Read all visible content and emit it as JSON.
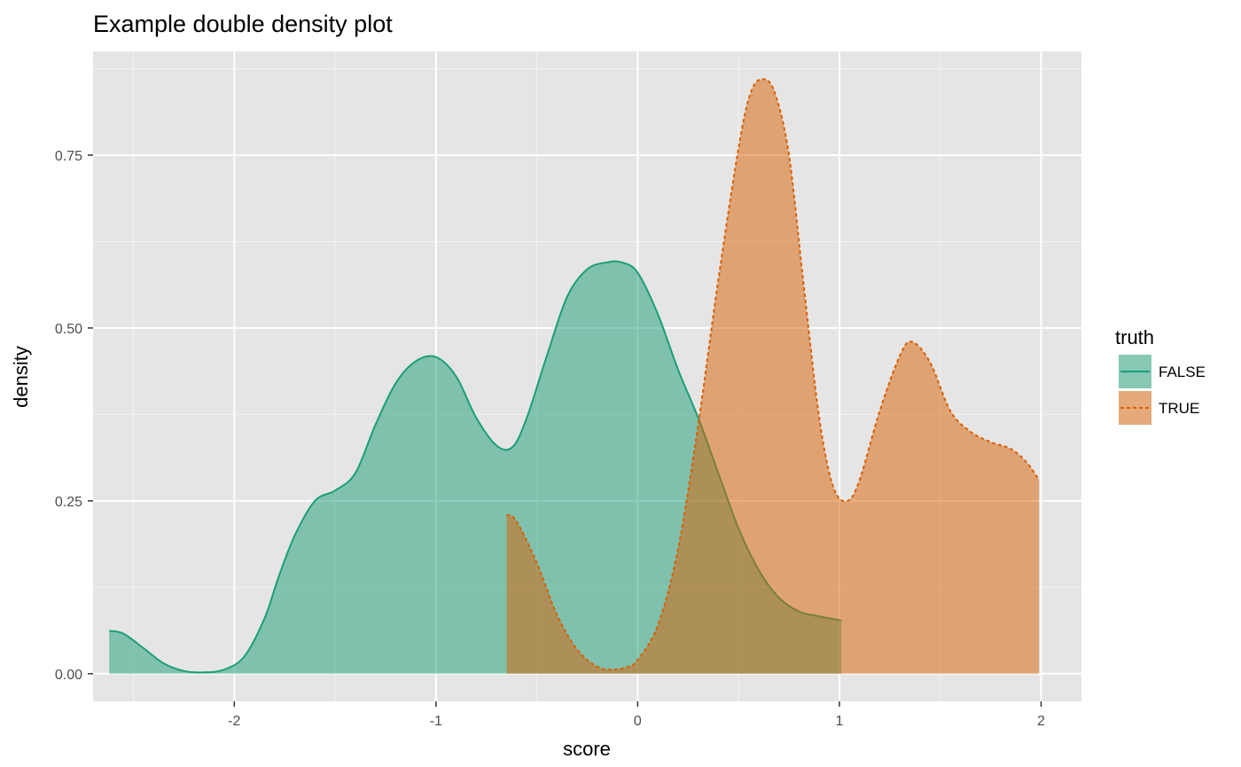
{
  "chart_data": {
    "type": "area",
    "title": "Example double density plot",
    "xlabel": "score",
    "ylabel": "density",
    "xlim": [
      -2.7,
      2.2
    ],
    "ylim": [
      -0.04,
      0.9
    ],
    "x_ticks": [
      {
        "value": -2,
        "label": "-2"
      },
      {
        "value": -1,
        "label": "-1"
      },
      {
        "value": 0,
        "label": "0"
      },
      {
        "value": 1,
        "label": "1"
      },
      {
        "value": 2,
        "label": "2"
      }
    ],
    "y_ticks": [
      {
        "value": 0,
        "label": "0.00"
      },
      {
        "value": 0.25,
        "label": "0.25"
      },
      {
        "value": 0.5,
        "label": "0.50"
      },
      {
        "value": 0.75,
        "label": "0.75"
      }
    ],
    "grid": true,
    "legend": {
      "title": "truth",
      "placement": "right"
    },
    "series": [
      {
        "name": "FALSE",
        "line_style": "solid",
        "line_color": "#1b9e77",
        "fill_color": "#1b9e77",
        "x": [
          -2.62,
          -2.55,
          -2.45,
          -2.35,
          -2.25,
          -2.15,
          -2.05,
          -1.95,
          -1.85,
          -1.78,
          -1.7,
          -1.6,
          -1.5,
          -1.4,
          -1.3,
          -1.2,
          -1.1,
          -1.0,
          -0.9,
          -0.8,
          -0.7,
          -0.62,
          -0.55,
          -0.45,
          -0.35,
          -0.25,
          -0.15,
          -0.08,
          0.0,
          0.1,
          0.2,
          0.3,
          0.4,
          0.5,
          0.6,
          0.7,
          0.8,
          0.9,
          1.01
        ],
        "y": [
          0.062,
          0.058,
          0.037,
          0.015,
          0.004,
          0.002,
          0.006,
          0.025,
          0.08,
          0.14,
          0.2,
          0.25,
          0.265,
          0.29,
          0.36,
          0.42,
          0.452,
          0.458,
          0.43,
          0.37,
          0.33,
          0.328,
          0.37,
          0.46,
          0.545,
          0.585,
          0.595,
          0.595,
          0.58,
          0.52,
          0.44,
          0.37,
          0.29,
          0.21,
          0.15,
          0.11,
          0.09,
          0.083,
          0.077
        ]
      },
      {
        "name": "TRUE",
        "line_style": "dashed",
        "line_color": "#d95f02",
        "fill_color": "#d95f02",
        "x": [
          -0.65,
          -0.6,
          -0.5,
          -0.4,
          -0.3,
          -0.2,
          -0.12,
          -0.05,
          0.0,
          0.1,
          0.2,
          0.3,
          0.4,
          0.5,
          0.56,
          0.62,
          0.68,
          0.75,
          0.82,
          0.9,
          0.97,
          1.04,
          1.1,
          1.2,
          1.3,
          1.36,
          1.45,
          1.55,
          1.65,
          1.75,
          1.85,
          1.93,
          1.99
        ],
        "y": [
          0.23,
          0.22,
          0.16,
          0.085,
          0.035,
          0.01,
          0.006,
          0.01,
          0.02,
          0.07,
          0.18,
          0.36,
          0.57,
          0.76,
          0.84,
          0.86,
          0.84,
          0.75,
          0.57,
          0.37,
          0.27,
          0.25,
          0.28,
          0.38,
          0.46,
          0.48,
          0.45,
          0.38,
          0.35,
          0.335,
          0.325,
          0.305,
          0.28
        ]
      }
    ]
  }
}
